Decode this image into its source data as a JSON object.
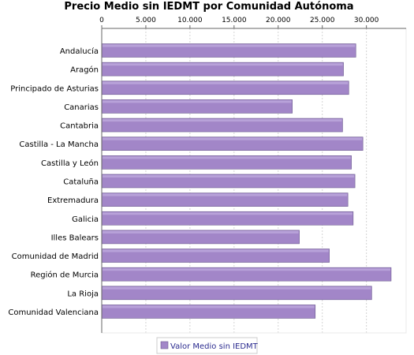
{
  "chart_data": {
    "type": "bar",
    "orientation": "horizontal",
    "title": "Precio Medio sin IEDMT por Comunidad Autónoma",
    "categories": [
      "Andalucía",
      "Aragón",
      "Principado de Asturias",
      "Canarias",
      "Cantabria",
      "Castilla - La Mancha",
      "Castilla y León",
      "Cataluña",
      "Extremadura",
      "Galicia",
      "Illes Balears",
      "Comunidad de Madrid",
      "Región de Murcia",
      "La Rioja",
      "Comunidad Valenciana"
    ],
    "series": [
      {
        "name": "Valor Medio sin IEDMT",
        "values": [
          28800,
          27400,
          28000,
          21600,
          27300,
          29600,
          28300,
          28700,
          27900,
          28500,
          22400,
          25800,
          32800,
          30600,
          24200
        ],
        "color": "#a286c8"
      }
    ],
    "xlim": [
      0,
      34500
    ],
    "x_ticks": [
      "0",
      "5.000",
      "10.000",
      "15.000",
      "20.000",
      "25.000",
      "30.000"
    ],
    "x_tick_values": [
      0,
      5000,
      10000,
      15000,
      20000,
      25000,
      30000
    ],
    "grid": true,
    "axis_position": "top",
    "legend_position": "bottom"
  }
}
